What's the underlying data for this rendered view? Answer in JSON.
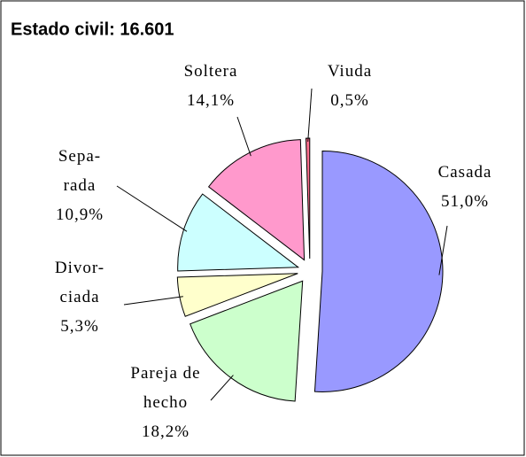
{
  "chart_data": {
    "type": "pie",
    "title": "Estado civil: 16.601",
    "categories": [
      "Casada",
      "Pareja de\nhecho",
      "Divor-\nciada",
      "Sepa-\nrada",
      "Soltera",
      "Viuda"
    ],
    "values": [
      51.0,
      18.2,
      5.3,
      10.9,
      14.1,
      0.5
    ],
    "value_labels": [
      "51,0%",
      "18,2%",
      "5,3%",
      "10,9%",
      "14,1%",
      "0,5%"
    ],
    "colors": [
      "#9999ff",
      "#ccffcc",
      "#ffffcc",
      "#ccffff",
      "#ff99cc",
      "#ff6f8f"
    ]
  }
}
